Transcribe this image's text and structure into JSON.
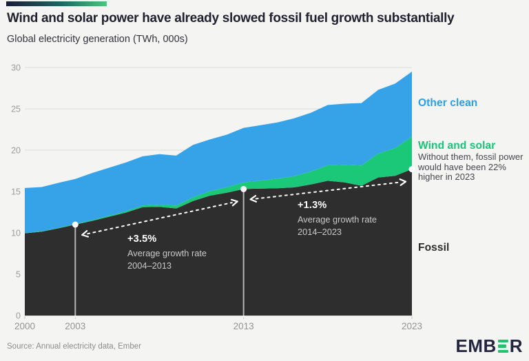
{
  "header": {
    "title": "Wind and solar power have already slowed fossil fuel growth substantially",
    "subtitle": "Global electricity generation (TWh, 000s)"
  },
  "chart_data": {
    "type": "area",
    "stacked": true,
    "title": "Wind and solar power have already slowed fossil fuel growth substantially",
    "ylabel": "Global electricity generation (TWh, 000s)",
    "xlabel": "",
    "grid": "horizontal",
    "ylim": [
      0,
      30
    ],
    "yticks": [
      0,
      5,
      10,
      15,
      20,
      25,
      30
    ],
    "xticks": [
      2000,
      2003,
      2013,
      2023
    ],
    "x": [
      2000,
      2001,
      2002,
      2003,
      2004,
      2005,
      2006,
      2007,
      2008,
      2009,
      2010,
      2011,
      2012,
      2013,
      2014,
      2015,
      2016,
      2017,
      2018,
      2019,
      2020,
      2021,
      2022,
      2023
    ],
    "series": [
      {
        "name": "Fossil",
        "color": "#2e2e2e",
        "values": [
          9.95,
          10.15,
          10.55,
          11.0,
          11.45,
          11.95,
          12.45,
          13.1,
          13.15,
          12.95,
          13.85,
          14.5,
          14.85,
          15.3,
          15.35,
          15.4,
          15.5,
          15.85,
          16.3,
          16.1,
          15.7,
          16.7,
          16.9,
          17.7
        ]
      },
      {
        "name": "Wind and solar",
        "color": "#1bc878",
        "values": [
          0.03,
          0.04,
          0.05,
          0.07,
          0.09,
          0.12,
          0.16,
          0.21,
          0.27,
          0.35,
          0.45,
          0.55,
          0.67,
          0.8,
          0.97,
          1.15,
          1.35,
          1.58,
          1.87,
          2.13,
          2.45,
          2.9,
          3.35,
          3.95
        ]
      },
      {
        "name": "Other clean",
        "color": "#36a3e9",
        "values": [
          5.45,
          5.35,
          5.45,
          5.45,
          5.7,
          5.8,
          5.9,
          5.95,
          6.1,
          6.05,
          6.35,
          6.25,
          6.35,
          6.6,
          6.7,
          6.8,
          7.0,
          7.1,
          7.3,
          7.4,
          7.55,
          7.7,
          7.8,
          7.85
        ]
      }
    ],
    "markers": [
      {
        "year": 2003,
        "line": true
      },
      {
        "year": 2013,
        "line": true
      },
      {
        "year": 2023,
        "line": false
      }
    ],
    "annotations": [
      {
        "rate": "+3.5%",
        "label": "Average growth rate",
        "period": "2004–2013",
        "from_year": 2003,
        "to_year": 2013
      },
      {
        "rate": "+1.3%",
        "label": "Average growth rate",
        "period": "2014–2023",
        "from_year": 2013,
        "to_year": 2023
      }
    ],
    "series_labels": [
      {
        "text": "Other clean",
        "color": "#2b9fe8"
      },
      {
        "text": "Wind and solar",
        "color": "#16c577",
        "note": "Without them, fossil power would have been 22% higher in 2023"
      },
      {
        "text": "Fossil",
        "color": "#2b2b2b"
      }
    ]
  },
  "footer": {
    "source": "Source: Annual electricity data, Ember",
    "logo_left": "EMB",
    "logo_right": "R",
    "logo_e_icon": "three-green-bars"
  }
}
